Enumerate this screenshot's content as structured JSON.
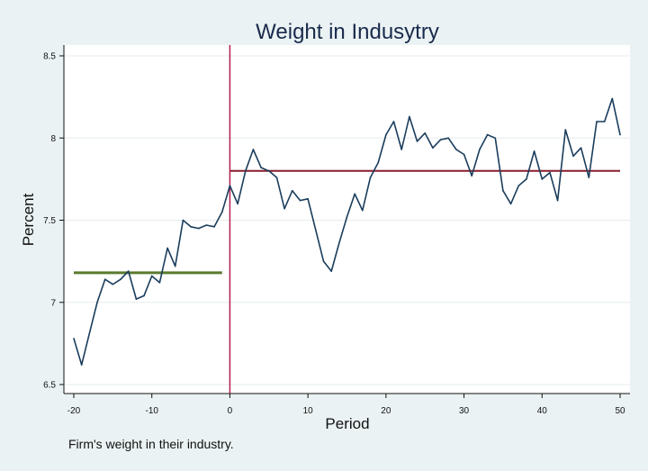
{
  "chart_data": {
    "type": "line",
    "title": "Weight in Indusytry",
    "xlabel": "Period",
    "ylabel": "Percent",
    "note": "Firm's weight in their industry.",
    "xlim": [
      -20,
      50
    ],
    "ylim": [
      6.5,
      8.5
    ],
    "xticks": [
      "-20",
      "-10",
      "0",
      "10",
      "20",
      "30",
      "40",
      "50"
    ],
    "yticks": [
      "6.5",
      "7",
      "7.5",
      "8",
      "8.5"
    ],
    "grid": true,
    "series": [
      {
        "x": [
          -20,
          -19,
          -18,
          -17,
          -16,
          -15,
          -14,
          -13,
          -12,
          -11,
          -10,
          -9,
          -8,
          -7,
          -6,
          -5,
          -4,
          -3,
          -2,
          -1,
          0,
          1,
          2,
          3,
          4,
          5,
          6,
          7,
          8,
          9,
          10,
          11,
          12,
          13,
          14,
          15,
          16,
          17,
          18,
          19,
          20,
          21,
          22,
          23,
          24,
          25,
          26,
          27,
          28,
          29,
          30,
          31,
          32,
          33,
          34,
          35,
          36,
          37,
          38,
          39,
          40,
          41,
          42,
          43,
          44,
          45,
          46,
          47,
          48,
          49,
          50
        ],
        "values": [
          6.78,
          6.62,
          6.81,
          7.0,
          7.14,
          7.11,
          7.14,
          7.19,
          7.02,
          7.04,
          7.16,
          7.12,
          7.33,
          7.22,
          7.5,
          7.46,
          7.45,
          7.47,
          7.46,
          7.55,
          7.71,
          7.6,
          7.8,
          7.93,
          7.82,
          7.8,
          7.76,
          7.57,
          7.68,
          7.62,
          7.63,
          7.44,
          7.25,
          7.19,
          7.36,
          7.52,
          7.66,
          7.56,
          7.76,
          7.85,
          8.02,
          8.1,
          7.93,
          8.13,
          7.98,
          8.03,
          7.94,
          7.99,
          8.0,
          7.93,
          7.9,
          7.77,
          7.93,
          8.02,
          8.0,
          7.68,
          7.6,
          7.71,
          7.75,
          7.92,
          7.75,
          7.79,
          7.62,
          8.05,
          7.89,
          7.94,
          7.76,
          8.1,
          8.1,
          8.24,
          8.02
        ],
        "color": "#1a3d5c"
      }
    ],
    "reference_lines": [
      {
        "orientation": "horizontal",
        "y": 7.18,
        "x_range": [
          -20,
          -1
        ],
        "color": "#5a7a2e"
      },
      {
        "orientation": "horizontal",
        "y": 7.8,
        "x_range": [
          0,
          50
        ],
        "color": "#8c1c2c"
      },
      {
        "orientation": "vertical",
        "x": 0,
        "color": "#b02050"
      }
    ]
  }
}
